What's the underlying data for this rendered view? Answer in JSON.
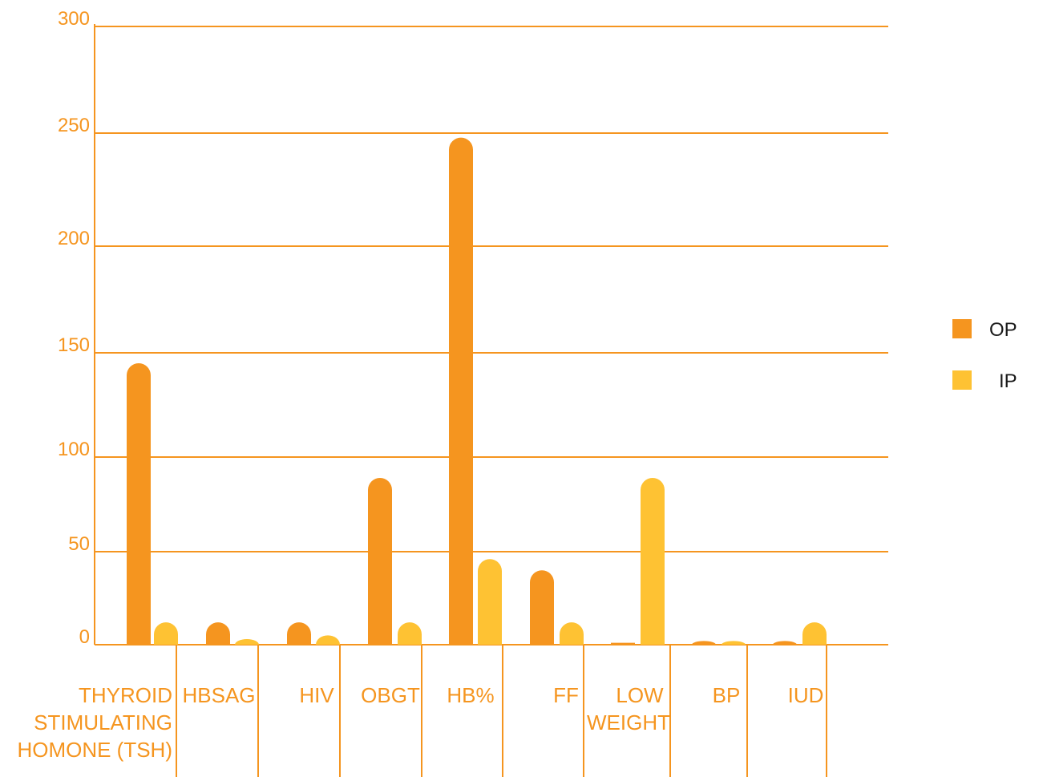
{
  "chart_data": {
    "type": "bar",
    "categories": [
      "THYROID STIMULATING HOMONE (TSH)",
      "HBSAG",
      "HIV",
      "OBGT",
      "HB%",
      "FF",
      "LOW WEIGHT",
      "BP",
      "IUD"
    ],
    "series": [
      {
        "name": "OP",
        "values": [
          145,
          12,
          12,
          89,
          248,
          40,
          1,
          2,
          2
        ]
      },
      {
        "name": "IP",
        "values": [
          12,
          3,
          5,
          12,
          46,
          12,
          89,
          2,
          12
        ]
      }
    ],
    "y_ticks": [
      "0",
      "50",
      "100",
      "150",
      "200",
      "250",
      "300"
    ],
    "ylim": [
      0,
      300
    ],
    "grid": true,
    "legend_position": "right",
    "colors": {
      "axis": "#f5951f",
      "text": "#f5951f",
      "op": "#f5951f",
      "ip": "#fec233",
      "legend_text": "#1a1a1a"
    }
  }
}
